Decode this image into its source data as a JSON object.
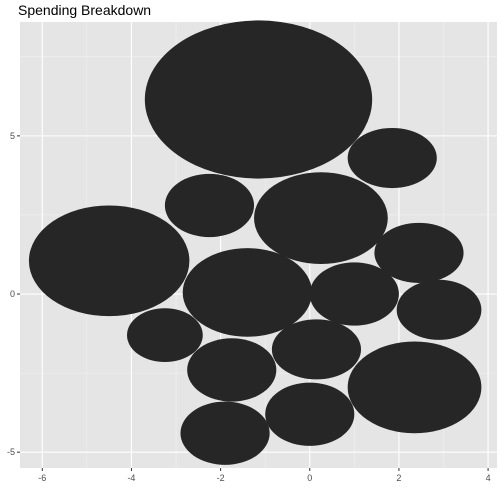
{
  "chart_data": {
    "type": "scatter",
    "title": "Spending Breakdown",
    "xlabel": "",
    "ylabel": "",
    "xlim": [
      -6.5,
      4.2
    ],
    "ylim": [
      -5.5,
      8.6
    ],
    "x_ticks": [
      -6,
      -4,
      -2,
      0,
      2,
      4
    ],
    "y_ticks": [
      -5,
      0,
      5
    ],
    "grid": true,
    "legend": "none",
    "colors": {
      "panel_background": "#e5e5e5",
      "grid_major": "#ffffff",
      "grid_minor": "#f2f2f2",
      "bubble_fill": "#262626",
      "tick_mark": "#333333"
    },
    "bubbles": [
      {
        "x": -1.15,
        "y": 6.15,
        "rx": 2.55,
        "ry": 2.5
      },
      {
        "x": 1.85,
        "y": 4.3,
        "rx": 1.0,
        "ry": 0.95
      },
      {
        "x": -2.25,
        "y": 2.8,
        "rx": 1.0,
        "ry": 1.0
      },
      {
        "x": 0.25,
        "y": 2.4,
        "rx": 1.5,
        "ry": 1.45
      },
      {
        "x": -4.5,
        "y": 1.05,
        "rx": 1.8,
        "ry": 1.75
      },
      {
        "x": 2.45,
        "y": 1.3,
        "rx": 1.0,
        "ry": 0.95
      },
      {
        "x": -1.4,
        "y": 0.05,
        "rx": 1.45,
        "ry": 1.4
      },
      {
        "x": 1.0,
        "y": 0.0,
        "rx": 1.0,
        "ry": 1.0
      },
      {
        "x": 2.9,
        "y": -0.5,
        "rx": 0.95,
        "ry": 0.95
      },
      {
        "x": -3.25,
        "y": -1.3,
        "rx": 0.85,
        "ry": 0.85
      },
      {
        "x": 0.15,
        "y": -1.75,
        "rx": 1.0,
        "ry": 0.95
      },
      {
        "x": -1.75,
        "y": -2.4,
        "rx": 1.0,
        "ry": 1.0
      },
      {
        "x": 2.35,
        "y": -2.95,
        "rx": 1.5,
        "ry": 1.45
      },
      {
        "x": 0.0,
        "y": -3.8,
        "rx": 1.0,
        "ry": 1.0
      },
      {
        "x": -1.9,
        "y": -4.4,
        "rx": 1.0,
        "ry": 1.0
      }
    ]
  }
}
